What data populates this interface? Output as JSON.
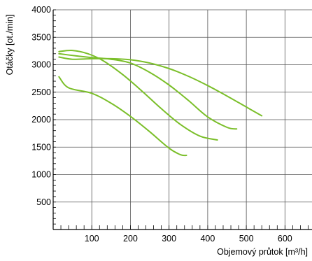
{
  "chart_data": {
    "type": "line",
    "xlabel": "Objemový průtok [m³/h]",
    "ylabel": "Otáčky [ot./min]",
    "xlim": [
      0,
      670
    ],
    "ylim": [
      0,
      4000
    ],
    "x_ticks": [
      100,
      200,
      300,
      400,
      500,
      600
    ],
    "y_ticks": [
      500,
      1000,
      1500,
      2000,
      2500,
      3000,
      3500,
      4000
    ],
    "grid": true,
    "line_color": "#7bbf2a",
    "series": [
      {
        "x": [
          15,
          50,
          100,
          150,
          200,
          250,
          300,
          350,
          400,
          450,
          500,
          540
        ],
        "y": [
          3140,
          3100,
          3110,
          3110,
          3090,
          3030,
          2930,
          2790,
          2620,
          2430,
          2230,
          2070
        ]
      },
      {
        "x": [
          15,
          60,
          100,
          150,
          200,
          250,
          300,
          350,
          400,
          450,
          475
        ],
        "y": [
          3200,
          3160,
          3130,
          3100,
          3030,
          2860,
          2630,
          2350,
          2050,
          1860,
          1830
        ]
      },
      {
        "x": [
          15,
          50,
          90,
          130,
          180,
          230,
          280,
          330,
          380,
          425
        ],
        "y": [
          3240,
          3260,
          3200,
          3070,
          2820,
          2520,
          2200,
          1910,
          1700,
          1630
        ]
      },
      {
        "x": [
          15,
          40,
          100,
          150,
          200,
          250,
          300,
          330,
          345
        ],
        "y": [
          2780,
          2580,
          2480,
          2300,
          2060,
          1780,
          1480,
          1360,
          1350
        ]
      }
    ]
  }
}
